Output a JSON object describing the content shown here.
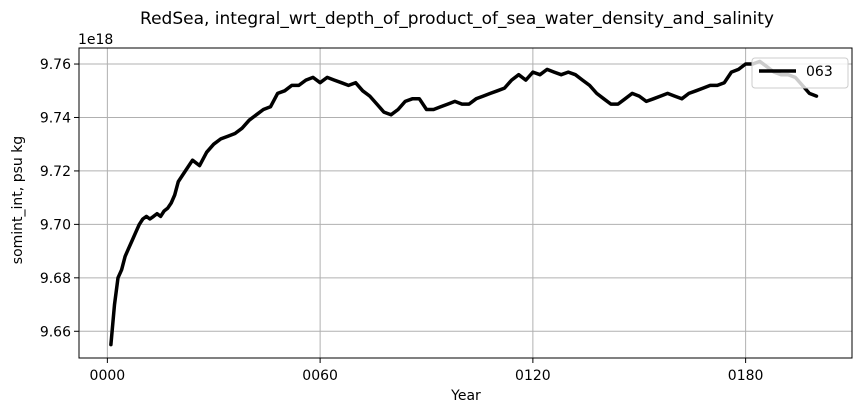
{
  "chart_data": {
    "type": "line",
    "title": "RedSea, integral_wrt_depth_of_product_of_sea_water_density_and_salinity",
    "xlabel": "Year",
    "ylabel": "somint_int, psu kg",
    "y_offset_label": "1e18",
    "y_scale_factor": 1e+18,
    "xlim": [
      -8,
      210
    ],
    "ylim": [
      9.65,
      9.766
    ],
    "x_ticks": [
      0,
      60,
      120,
      180
    ],
    "x_tick_labels": [
      "0000",
      "0060",
      "0120",
      "0180"
    ],
    "y_ticks": [
      9.66,
      9.68,
      9.7,
      9.72,
      9.74,
      9.76
    ],
    "y_tick_labels": [
      "9.66",
      "9.68",
      "9.70",
      "9.72",
      "9.74",
      "9.76"
    ],
    "grid": true,
    "legend_position": "top-right",
    "series": [
      {
        "name": "063",
        "color": "#000000",
        "x": [
          1,
          2,
          3,
          4,
          5,
          6,
          7,
          8,
          9,
          10,
          11,
          12,
          13,
          14,
          15,
          16,
          17,
          18,
          19,
          20,
          22,
          24,
          26,
          28,
          30,
          32,
          34,
          36,
          38,
          40,
          42,
          44,
          46,
          48,
          50,
          52,
          54,
          56,
          58,
          60,
          62,
          64,
          66,
          68,
          70,
          72,
          74,
          76,
          78,
          80,
          82,
          84,
          86,
          88,
          90,
          92,
          94,
          96,
          98,
          100,
          102,
          104,
          106,
          108,
          110,
          112,
          114,
          116,
          118,
          120,
          122,
          124,
          126,
          128,
          130,
          132,
          134,
          136,
          138,
          140,
          142,
          144,
          146,
          148,
          150,
          152,
          154,
          156,
          158,
          160,
          162,
          164,
          166,
          168,
          170,
          172,
          174,
          176,
          178,
          180,
          182,
          184,
          186,
          188,
          190,
          192,
          194,
          196,
          198,
          200
        ],
        "values": [
          9.655,
          9.67,
          9.68,
          9.683,
          9.688,
          9.691,
          9.694,
          9.697,
          9.7,
          9.702,
          9.703,
          9.702,
          9.703,
          9.704,
          9.703,
          9.705,
          9.706,
          9.708,
          9.711,
          9.716,
          9.72,
          9.724,
          9.722,
          9.727,
          9.73,
          9.732,
          9.733,
          9.734,
          9.736,
          9.739,
          9.741,
          9.743,
          9.744,
          9.749,
          9.75,
          9.752,
          9.752,
          9.754,
          9.755,
          9.753,
          9.755,
          9.754,
          9.753,
          9.752,
          9.753,
          9.75,
          9.748,
          9.745,
          9.742,
          9.741,
          9.743,
          9.746,
          9.747,
          9.747,
          9.743,
          9.743,
          9.744,
          9.745,
          9.746,
          9.745,
          9.745,
          9.747,
          9.748,
          9.749,
          9.75,
          9.751,
          9.754,
          9.756,
          9.754,
          9.757,
          9.756,
          9.758,
          9.757,
          9.756,
          9.757,
          9.756,
          9.754,
          9.752,
          9.749,
          9.747,
          9.745,
          9.745,
          9.747,
          9.749,
          9.748,
          9.746,
          9.747,
          9.748,
          9.749,
          9.748,
          9.747,
          9.749,
          9.75,
          9.751,
          9.752,
          9.752,
          9.753,
          9.757,
          9.758,
          9.76,
          9.76,
          9.761,
          9.759,
          9.757,
          9.756,
          9.756,
          9.755,
          9.752,
          9.749,
          9.748
        ]
      }
    ]
  }
}
